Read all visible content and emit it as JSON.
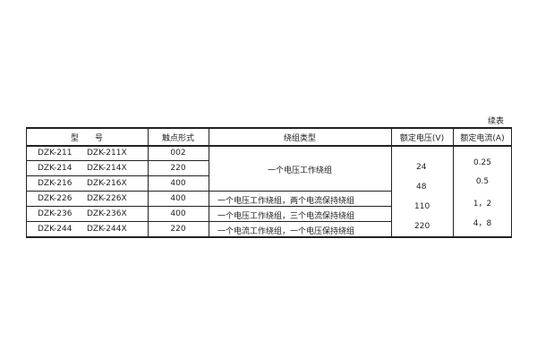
{
  "caption": "续表",
  "headers": [
    "型　　号",
    "触点形式",
    "绕组类型",
    "额定电压(V)",
    "额定电流(A)"
  ],
  "rows": [
    {
      "model": "DZK-211",
      "model_x": "DZK-211X",
      "contact": "002"
    },
    {
      "model": "DZK-214",
      "model_x": "DZK-214X",
      "contact": "220"
    },
    {
      "model": "DZK-216",
      "model_x": "DZK-216X",
      "contact": "400"
    },
    {
      "model": "DZK-226",
      "model_x": "DZK-226X",
      "contact": "400"
    },
    {
      "model": "DZK-236",
      "model_x": "DZK-236X",
      "contact": "400"
    },
    {
      "model": "DZK-244",
      "model_x": "DZK-244X",
      "contact": "220"
    }
  ],
  "winding": {
    "merged_first_three": "一个电压工作绕组",
    "row4": "一个电压工作绕组，两个电流保持绕组",
    "row5": "一个电压工作绕组，三个电流保持绕组",
    "row6": "一个电流工作绕组，一个电压保持绕组"
  },
  "voltages": [
    "24",
    "48",
    "110",
    "220"
  ],
  "currents": [
    "0.25",
    "0.5",
    "1，2",
    "4，8"
  ]
}
